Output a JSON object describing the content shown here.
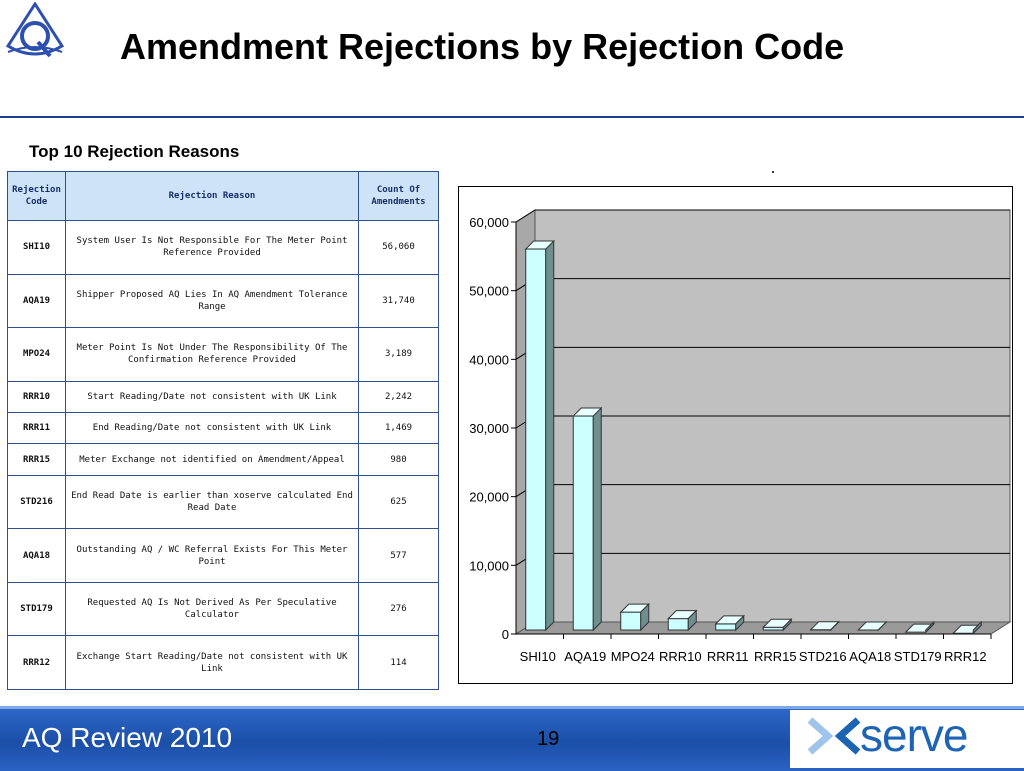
{
  "header": {
    "title": "Amendment Rejections by Rejection Code",
    "logo_icon": "aq-logo-icon"
  },
  "table": {
    "title": "Top 10 Rejection Reasons",
    "headers": [
      "Rejection Code",
      "Rejection Reason",
      "Count Of Amendments"
    ],
    "rows": [
      {
        "code": "SHI10",
        "reason": "System User Is Not Responsible For The Meter Point Reference Provided",
        "count": "56,060"
      },
      {
        "code": "AQA19",
        "reason": "Shipper Proposed AQ Lies In AQ Amendment Tolerance Range",
        "count": "31,740"
      },
      {
        "code": "MPO24",
        "reason": "Meter Point Is Not Under The Responsibility Of The Confirmation Reference Provided",
        "count": "3,189"
      },
      {
        "code": "RRR10",
        "reason": "Start Reading/Date not consistent with UK Link",
        "count": "2,242"
      },
      {
        "code": "RRR11",
        "reason": "End Reading/Date not consistent with UK Link",
        "count": "1,469"
      },
      {
        "code": "RRR15",
        "reason": "Meter Exchange not identified on Amendment/Appeal",
        "count": "980"
      },
      {
        "code": "STD216",
        "reason": "End Read Date is earlier than xoserve calculated End Read Date",
        "count": "625"
      },
      {
        "code": "AQA18",
        "reason": "Outstanding AQ / WC Referral Exists For This Meter Point",
        "count": "577"
      },
      {
        "code": "STD179",
        "reason": "Requested AQ Is Not Derived As Per Speculative Calculator",
        "count": "276"
      },
      {
        "code": "RRR12",
        "reason": "Exchange Start Reading/Date not consistent with UK Link",
        "count": "114"
      }
    ]
  },
  "chart_data": {
    "type": "bar",
    "categories": [
      "SHI10",
      "AQA19",
      "MPO24",
      "RRR10",
      "RRR11",
      "RRR15",
      "STD216",
      "AQA18",
      "STD179",
      "RRR12"
    ],
    "values": [
      56060,
      31740,
      3189,
      2242,
      1469,
      980,
      625,
      577,
      276,
      114
    ],
    "yticks": [
      "0",
      "10,000",
      "20,000",
      "30,000",
      "40,000",
      "50,000",
      "60,000"
    ],
    "ylim": [
      0,
      60000
    ],
    "grid": true,
    "legend": "none",
    "bar_color": "#ccffff",
    "wall_color": "#c0c0c0",
    "style": "3d"
  },
  "footer": {
    "title": "AQ Review 2010",
    "page_number": "19",
    "brand": "serve",
    "brand_icon": "xoserve-x-icon",
    "background": "#1b4fa8",
    "brand_color": "#1e64b4"
  }
}
